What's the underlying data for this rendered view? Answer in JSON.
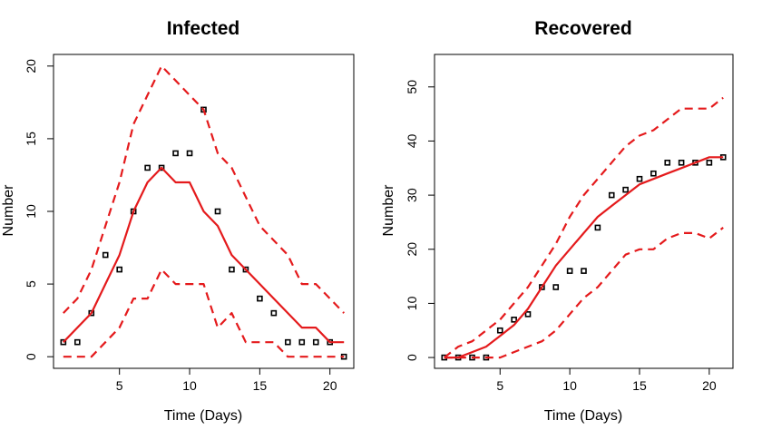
{
  "chart_data": [
    {
      "type": "line",
      "title": "Infected",
      "xlabel": "Time (Days)",
      "ylabel": "Number",
      "xlim": [
        0.3,
        21.7
      ],
      "ylim": [
        -0.8,
        20.8
      ],
      "xticks": [
        5,
        10,
        15,
        20
      ],
      "yticks": [
        0,
        5,
        10,
        15,
        20
      ],
      "series": [
        {
          "kind": "points",
          "color": "#000000",
          "x": [
            1,
            2,
            3,
            4,
            5,
            6,
            7,
            8,
            9,
            10,
            11,
            12,
            13,
            14,
            15,
            16,
            17,
            18,
            19,
            20,
            21
          ],
          "y": [
            1,
            1,
            3,
            7,
            6,
            10,
            13,
            13,
            14,
            14,
            17,
            10,
            6,
            6,
            4,
            3,
            1,
            1,
            1,
            1,
            0
          ]
        },
        {
          "kind": "mean",
          "color": "#e41a1c",
          "x": [
            1,
            2,
            3,
            4,
            5,
            6,
            7,
            8,
            9,
            10,
            11,
            12,
            13,
            14,
            15,
            16,
            17,
            18,
            19,
            20,
            21
          ],
          "y": [
            1,
            2,
            3,
            5,
            7,
            10,
            12,
            13,
            12,
            12,
            10,
            9,
            7,
            6,
            5,
            4,
            3,
            2,
            2,
            1,
            1
          ]
        },
        {
          "kind": "upper",
          "color": "#e41a1c",
          "x": [
            1,
            2,
            3,
            4,
            5,
            6,
            7,
            8,
            9,
            10,
            11,
            12,
            13,
            14,
            15,
            16,
            17,
            18,
            19,
            20,
            21
          ],
          "y": [
            3,
            4,
            6,
            9,
            12,
            16,
            18,
            20,
            19,
            18,
            17,
            14,
            13,
            11,
            9,
            8,
            7,
            5,
            5,
            4,
            3
          ]
        },
        {
          "kind": "lower",
          "color": "#e41a1c",
          "x": [
            1,
            2,
            3,
            4,
            5,
            6,
            7,
            8,
            9,
            10,
            11,
            12,
            13,
            14,
            15,
            16,
            17,
            18,
            19,
            20,
            21
          ],
          "y": [
            0,
            0,
            0,
            1,
            2,
            4,
            4,
            6,
            5,
            5,
            5,
            2,
            3,
            1,
            1,
            1,
            0,
            0,
            0,
            0,
            0
          ]
        }
      ]
    },
    {
      "type": "line",
      "title": "Recovered",
      "xlabel": "Time (Days)",
      "ylabel": "Number",
      "xlim": [
        0.3,
        21.7
      ],
      "ylim": [
        -2,
        56
      ],
      "xticks": [
        5,
        10,
        15,
        20
      ],
      "yticks": [
        0,
        10,
        20,
        30,
        40,
        50
      ],
      "series": [
        {
          "kind": "points",
          "color": "#000000",
          "x": [
            1,
            2,
            3,
            4,
            5,
            6,
            7,
            8,
            9,
            10,
            11,
            12,
            13,
            14,
            15,
            16,
            17,
            18,
            19,
            20,
            21
          ],
          "y": [
            0,
            0,
            0,
            0,
            5,
            7,
            8,
            13,
            13,
            16,
            16,
            24,
            30,
            31,
            33,
            34,
            36,
            36,
            36,
            36,
            37
          ]
        },
        {
          "kind": "mean",
          "color": "#e41a1c",
          "x": [
            1,
            2,
            3,
            4,
            5,
            6,
            7,
            8,
            9,
            10,
            11,
            12,
            13,
            14,
            15,
            16,
            17,
            18,
            19,
            20,
            21
          ],
          "y": [
            0,
            0,
            1,
            2,
            4,
            6,
            9,
            13,
            17,
            20,
            23,
            26,
            28,
            30,
            32,
            33,
            34,
            35,
            36,
            37,
            37
          ]
        },
        {
          "kind": "upper",
          "color": "#e41a1c",
          "x": [
            1,
            2,
            3,
            4,
            5,
            6,
            7,
            8,
            9,
            10,
            11,
            12,
            13,
            14,
            15,
            16,
            17,
            18,
            19,
            20,
            21
          ],
          "y": [
            0,
            2,
            3,
            5,
            7,
            10,
            13,
            17,
            21,
            26,
            30,
            33,
            36,
            39,
            41,
            42,
            44,
            46,
            46,
            46,
            48
          ]
        },
        {
          "kind": "lower",
          "color": "#e41a1c",
          "x": [
            1,
            2,
            3,
            4,
            5,
            6,
            7,
            8,
            9,
            10,
            11,
            12,
            13,
            14,
            15,
            16,
            17,
            18,
            19,
            20,
            21
          ],
          "y": [
            0,
            0,
            0,
            0,
            0,
            1,
            2,
            3,
            5,
            8,
            11,
            13,
            16,
            19,
            20,
            20,
            22,
            23,
            23,
            22,
            24
          ]
        }
      ]
    }
  ]
}
